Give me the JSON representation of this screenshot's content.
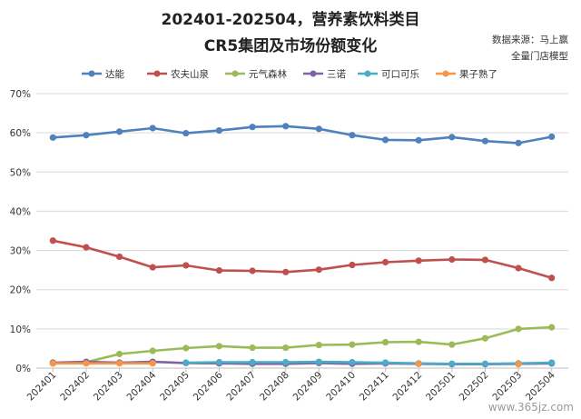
{
  "chart_data": {
    "type": "line",
    "title_line1": "202401-202504，营养素饮料类目",
    "title_line2": "CR5集团及市场份额变化",
    "source_line1": "数据来源：马上赢",
    "source_line2": "全量门店模型",
    "categories": [
      "202401",
      "202402",
      "202403",
      "202404",
      "202405",
      "202406",
      "202407",
      "202408",
      "202409",
      "202410",
      "202411",
      "202412",
      "202501",
      "202502",
      "202503",
      "202504"
    ],
    "y_ticks": [
      "0%",
      "10%",
      "20%",
      "30%",
      "40%",
      "50%",
      "60%",
      "70%"
    ],
    "ylim": [
      0,
      70
    ],
    "grid": true,
    "legend_position": "top",
    "series": [
      {
        "name": "达能",
        "color": "#4f81bd",
        "values": [
          58.8,
          59.4,
          60.3,
          61.2,
          59.9,
          60.6,
          61.5,
          61.7,
          61.0,
          59.4,
          58.2,
          58.1,
          58.9,
          57.9,
          57.4,
          59.0
        ]
      },
      {
        "name": "农夫山泉",
        "color": "#c0504d",
        "values": [
          32.5,
          30.8,
          28.4,
          25.7,
          26.2,
          24.9,
          24.8,
          24.5,
          25.1,
          26.3,
          27.0,
          27.4,
          27.7,
          27.6,
          25.5,
          23.0
        ]
      },
      {
        "name": "元气森林",
        "color": "#9bbb59",
        "values": [
          1.2,
          1.5,
          3.6,
          4.4,
          5.1,
          5.6,
          5.2,
          5.2,
          5.9,
          6.0,
          6.6,
          6.7,
          6.0,
          7.6,
          10.0,
          10.4
        ]
      },
      {
        "name": "三诺",
        "color": "#8064a2",
        "values": [
          1.4,
          1.6,
          1.4,
          1.6,
          1.3,
          1.2,
          1.1,
          1.1,
          1.3,
          1.1,
          1.2,
          1.1,
          1.0,
          1.0,
          1.1,
          1.2
        ]
      },
      {
        "name": "可口可乐",
        "color": "#4bacc6",
        "values": [
          null,
          null,
          null,
          null,
          1.4,
          1.5,
          1.5,
          1.5,
          1.6,
          1.5,
          1.4,
          1.2,
          1.1,
          1.1,
          1.2,
          1.4
        ]
      },
      {
        "name": "果子熟了",
        "color": "#f79646",
        "values": [
          1.2,
          1.2,
          1.2,
          1.2,
          null,
          null,
          null,
          null,
          null,
          null,
          null,
          1.1,
          null,
          null,
          1.0,
          null
        ]
      }
    ],
    "watermark": "www.365jz.com"
  }
}
